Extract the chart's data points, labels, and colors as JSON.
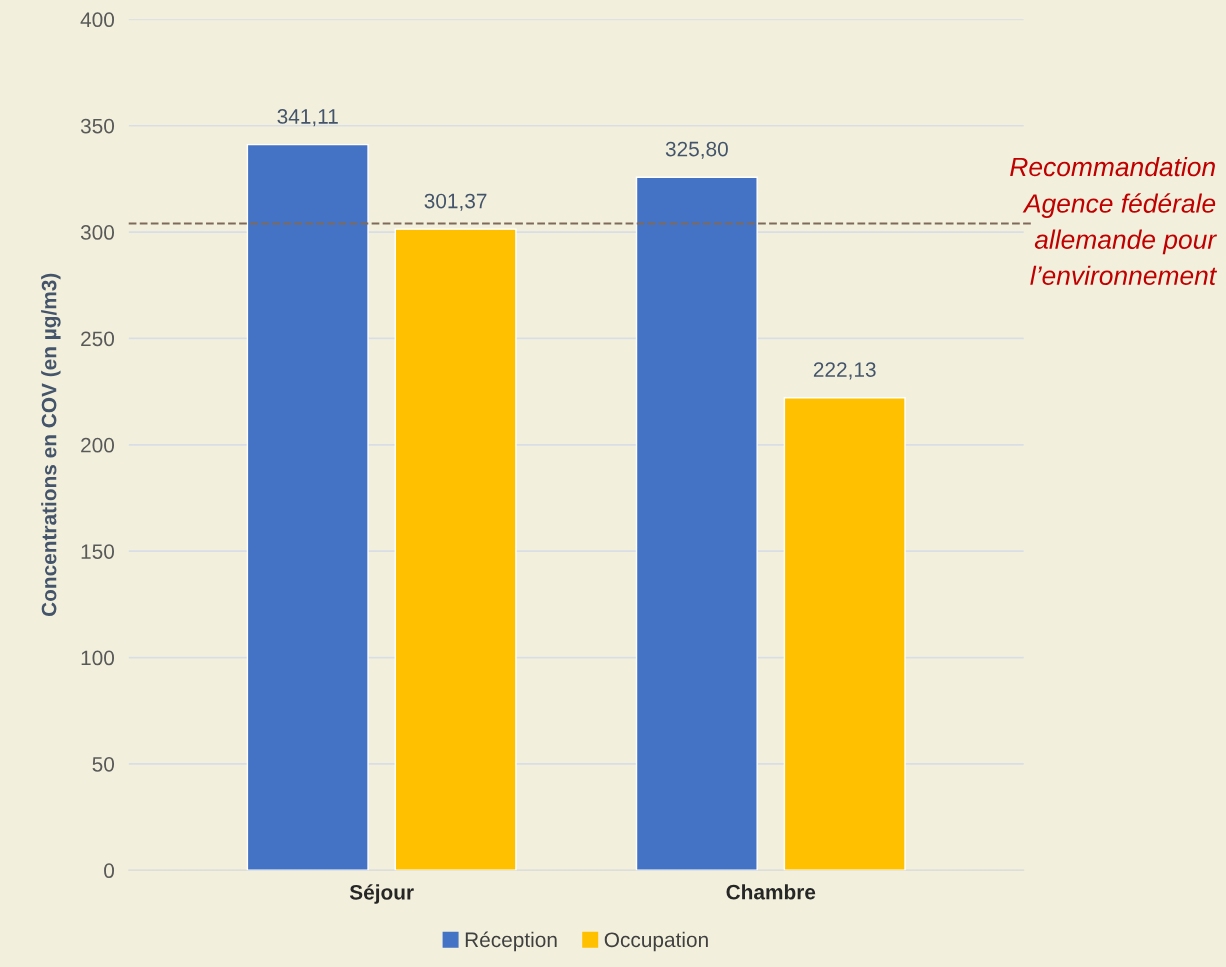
{
  "chart_data": {
    "type": "bar",
    "categories": [
      "Séjour",
      "Chambre"
    ],
    "ylabel": "Concentrations en COV (en µg/m3)",
    "series": [
      {
        "name": "Réception",
        "color": "#4472c4",
        "values": [
          341.11,
          325.8
        ],
        "value_labels": [
          "341,11",
          "325,80"
        ]
      },
      {
        "name": "Occupation",
        "color": "#ffc000",
        "values": [
          301.37,
          222.13
        ],
        "value_labels": [
          "301,37",
          "222,13"
        ]
      }
    ],
    "ylim": [
      0,
      400
    ],
    "yticks": [
      0,
      50,
      100,
      150,
      200,
      250,
      300,
      350,
      400
    ],
    "grid": "y",
    "legend": "bottom",
    "ref_lines": [
      {
        "axis": "y",
        "value": 304,
        "label": "Recommandation\nAgence fédérale\nallemande pour\nl’environnement",
        "color": "#7f6a5a",
        "line_style": "dashed"
      }
    ]
  }
}
